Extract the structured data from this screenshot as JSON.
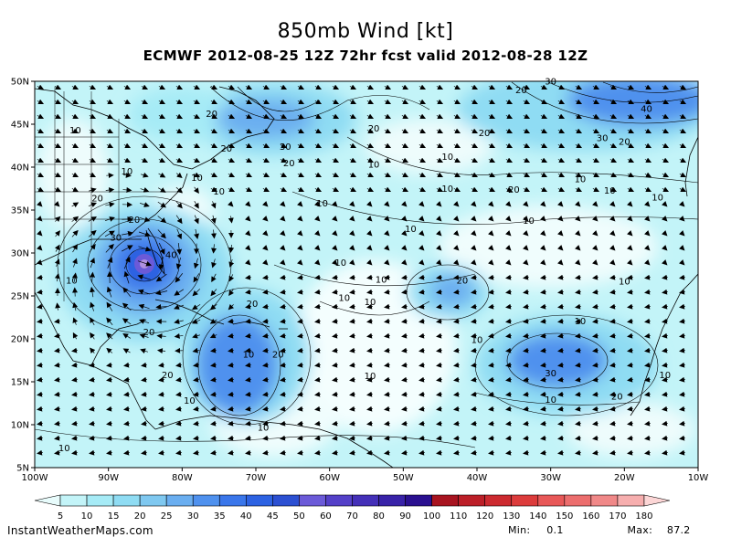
{
  "title": "850mb Wind [kt]",
  "subtitle": "ECMWF 2012-08-25 12Z 72hr fcst valid 2012-08-28 12Z",
  "map": {
    "lat_ticks": [
      "50N",
      "45N",
      "40N",
      "35N",
      "30N",
      "25N",
      "20N",
      "15N",
      "10N",
      "5N"
    ],
    "lon_ticks": [
      "100W",
      "90W",
      "80W",
      "70W",
      "60W",
      "50W",
      "40W",
      "30W",
      "20W",
      "10W"
    ],
    "lat_range": [
      5,
      50
    ],
    "lon_range": [
      -100,
      -10
    ],
    "contour_labels": [
      {
        "text": "10",
        "lon": -94.5,
        "lat": 44.3
      },
      {
        "text": "20",
        "lon": -76,
        "lat": 46.2
      },
      {
        "text": "20",
        "lon": -74,
        "lat": 42.2
      },
      {
        "text": "30",
        "lon": -66,
        "lat": 42.4
      },
      {
        "text": "20",
        "lon": -65.5,
        "lat": 40.5
      },
      {
        "text": "20",
        "lon": -54,
        "lat": 44.5
      },
      {
        "text": "10",
        "lon": -54,
        "lat": 40.3
      },
      {
        "text": "20",
        "lon": -34,
        "lat": 49
      },
      {
        "text": "30",
        "lon": -30,
        "lat": 50
      },
      {
        "text": "20",
        "lon": -39,
        "lat": 44
      },
      {
        "text": "10",
        "lon": -44,
        "lat": 41.2
      },
      {
        "text": "40",
        "lon": -17,
        "lat": 46.8
      },
      {
        "text": "30",
        "lon": -23,
        "lat": 43.4
      },
      {
        "text": "20",
        "lon": -20,
        "lat": 43
      },
      {
        "text": "10",
        "lon": -44,
        "lat": 37.5
      },
      {
        "text": "20",
        "lon": -35,
        "lat": 37.4
      },
      {
        "text": "10",
        "lon": -26,
        "lat": 38.6
      },
      {
        "text": "10",
        "lon": -22,
        "lat": 37.3
      },
      {
        "text": "10",
        "lon": -15.5,
        "lat": 36.5
      },
      {
        "text": "10",
        "lon": -78,
        "lat": 38.8
      },
      {
        "text": "10",
        "lon": -75,
        "lat": 37.2
      },
      {
        "text": "10",
        "lon": -87.5,
        "lat": 39.5
      },
      {
        "text": "20",
        "lon": -91.5,
        "lat": 36.4
      },
      {
        "text": "10",
        "lon": -61,
        "lat": 35.8
      },
      {
        "text": "10",
        "lon": -33,
        "lat": 33.8
      },
      {
        "text": "10",
        "lon": -49,
        "lat": 32.8
      },
      {
        "text": "20",
        "lon": -86.5,
        "lat": 33.9
      },
      {
        "text": "30",
        "lon": -89,
        "lat": 31.8
      },
      {
        "text": "40",
        "lon": -81.5,
        "lat": 29.8
      },
      {
        "text": "10",
        "lon": -95,
        "lat": 26.8
      },
      {
        "text": "10",
        "lon": -58.5,
        "lat": 28.9
      },
      {
        "text": "10",
        "lon": -53,
        "lat": 26.9
      },
      {
        "text": "20",
        "lon": -42,
        "lat": 26.8
      },
      {
        "text": "10",
        "lon": -58,
        "lat": 24.8
      },
      {
        "text": "10",
        "lon": -54.5,
        "lat": 24.3
      },
      {
        "text": "20",
        "lon": -70.5,
        "lat": 24.1
      },
      {
        "text": "10",
        "lon": -20,
        "lat": 26.7
      },
      {
        "text": "10",
        "lon": -26,
        "lat": 22.1
      },
      {
        "text": "20",
        "lon": -84.5,
        "lat": 20.8
      },
      {
        "text": "10",
        "lon": -71,
        "lat": 18.2
      },
      {
        "text": "20",
        "lon": -67,
        "lat": 18.2
      },
      {
        "text": "10",
        "lon": -40,
        "lat": 19.9
      },
      {
        "text": "10",
        "lon": -54.5,
        "lat": 15.7
      },
      {
        "text": "20",
        "lon": -82,
        "lat": 15.8
      },
      {
        "text": "30",
        "lon": -30,
        "lat": 16
      },
      {
        "text": "10",
        "lon": -14.5,
        "lat": 15.8
      },
      {
        "text": "10",
        "lon": -79,
        "lat": 12.8
      },
      {
        "text": "10",
        "lon": -30,
        "lat": 12.9
      },
      {
        "text": "20",
        "lon": -21,
        "lat": 13.3
      },
      {
        "text": "10",
        "lon": -69,
        "lat": 9.7
      },
      {
        "text": "10",
        "lon": -96,
        "lat": 7.3
      }
    ]
  },
  "colorbar": {
    "labels": [
      "5",
      "10",
      "15",
      "20",
      "25",
      "30",
      "35",
      "40",
      "45",
      "50",
      "60",
      "70",
      "80",
      "90",
      "100",
      "110",
      "120",
      "130",
      "140",
      "150",
      "160",
      "170",
      "180"
    ],
    "colors": [
      "#e8fcfc",
      "#c3f4f8",
      "#a6ebf6",
      "#8fdcf3",
      "#7fc8f0",
      "#6aaef0",
      "#4f91ee",
      "#3a76ea",
      "#2d62e2",
      "#2c50d2",
      "#6b5ad8",
      "#5440c8",
      "#4430b8",
      "#3822a8",
      "#2a1090",
      "#a81420",
      "#bc1f28",
      "#cc2a30",
      "#dc3c3c",
      "#e85858",
      "#ec6e6e",
      "#f08888",
      "#f6aeae",
      "#fcd6d6"
    ]
  },
  "credit": "InstantWeatherMaps.com",
  "stats": {
    "min_label": "Min:",
    "min_value": "0.1",
    "max_label": "Max:",
    "max_value": "87.2"
  }
}
